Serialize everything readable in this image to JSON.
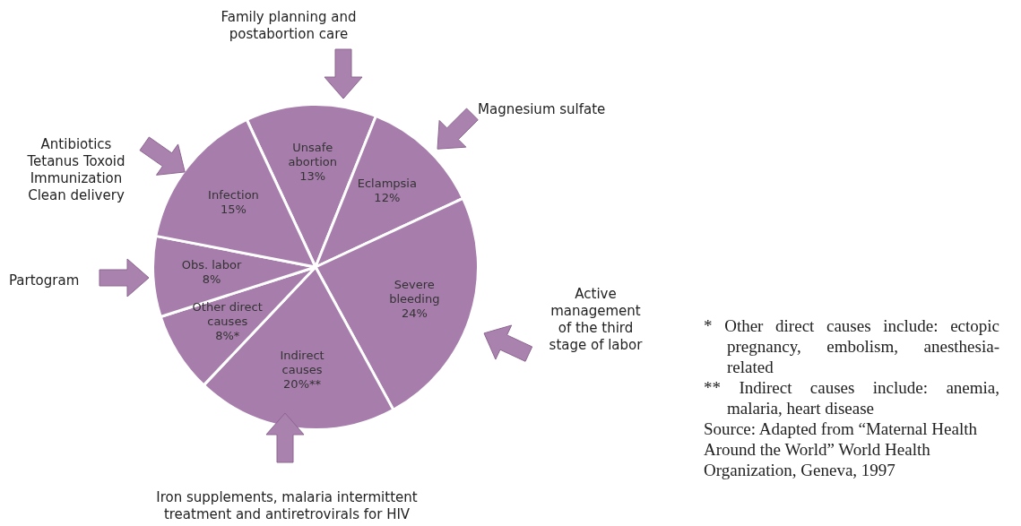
{
  "chart_data": {
    "type": "pie",
    "categories": [
      "Unsafe abortion",
      "Eclampsia",
      "Severe bleeding",
      "Indirect causes",
      "Other direct causes",
      "Obs. labor",
      "Infection"
    ],
    "values": [
      13,
      12,
      24,
      20,
      8,
      8,
      15
    ],
    "value_labels": [
      "13%",
      "12%",
      "24%",
      "20%**",
      "8%*",
      "8%",
      "15%"
    ],
    "colors": [
      "#a77dac",
      "#a77dac",
      "#a77dac",
      "#a77dac",
      "#a77dac",
      "#a77dac",
      "#a77dac"
    ],
    "annotations": [
      "Family planning and postabortion care",
      "Magnesium sulfate",
      "Active management of the third stage of labor",
      "Iron supplements, malaria intermittent treatment and antiretrovirals for HIV",
      "Partogram",
      "Antibiotics Tetanus Toxoid Immunization Clean delivery",
      "* Other direct causes include: ectopic pregnancy, embolism, anesthesia-related",
      "** Indirect causes include: anemia, malaria, heart disease",
      "Source: Adapted from “Maternal Health Around the World” World Health Organization, Geneva, 1997"
    ]
  }
}
